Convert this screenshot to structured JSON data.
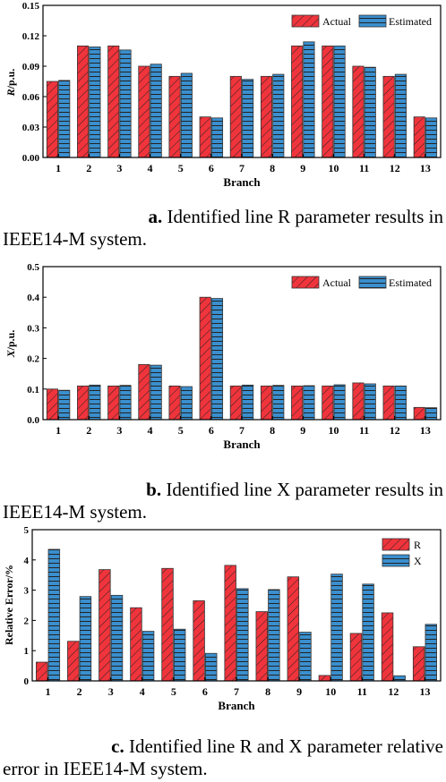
{
  "panels": [
    {
      "caption": {
        "label": "a.",
        "line1_text": " Identified line R parameter results in",
        "line2_text": "IEEE14-M system."
      },
      "chart_data": {
        "type": "bar",
        "categories": [
          "1",
          "2",
          "3",
          "4",
          "5",
          "6",
          "7",
          "8",
          "9",
          "10",
          "11",
          "12",
          "13"
        ],
        "series": [
          {
            "name": "Actual",
            "values": [
              0.075,
              0.11,
              0.11,
              0.09,
              0.08,
              0.04,
              0.08,
              0.08,
              0.11,
              0.11,
              0.09,
              0.08,
              0.04
            ]
          },
          {
            "name": "Estimated",
            "values": [
              0.076,
              0.109,
              0.106,
              0.092,
              0.083,
              0.039,
              0.077,
              0.082,
              0.114,
              0.11,
              0.089,
              0.082,
              0.039
            ]
          }
        ],
        "xlabel": "Branch",
        "ylabel": "R/p.u.",
        "ylabel_italic": "R",
        "ylabel_rest": "/p.u.",
        "ylim": [
          0,
          0.15
        ],
        "yticks": [
          "0.00",
          "0.03",
          "0.06",
          "0.09",
          "0.12",
          "0.15"
        ],
        "legend": "top-right",
        "grid": false
      }
    },
    {
      "caption": {
        "label": "b.",
        "line1_text": " Identified line X parameter results in",
        "line2_text": "IEEE14-M system."
      },
      "chart_data": {
        "type": "bar",
        "categories": [
          "1",
          "2",
          "3",
          "4",
          "5",
          "6",
          "7",
          "8",
          "9",
          "10",
          "11",
          "12",
          "13"
        ],
        "series": [
          {
            "name": "Actual",
            "values": [
              0.1,
              0.11,
              0.11,
              0.18,
              0.11,
              0.4,
              0.11,
              0.11,
              0.11,
              0.11,
              0.12,
              0.11,
              0.04
            ]
          },
          {
            "name": "Estimated",
            "values": [
              0.096,
              0.113,
              0.112,
              0.178,
              0.108,
              0.396,
              0.113,
              0.112,
              0.111,
              0.114,
              0.117,
              0.11,
              0.039
            ]
          }
        ],
        "xlabel": "Branch",
        "ylabel": "X/p.u.",
        "ylabel_italic": "X",
        "ylabel_rest": "/p.u.",
        "ylim": [
          0,
          0.5
        ],
        "yticks": [
          "0.0",
          "0.1",
          "0.2",
          "0.3",
          "0.4",
          "0.5"
        ],
        "legend": "top-right",
        "grid": false
      }
    },
    {
      "caption": {
        "label": "c.",
        "line1_text": " Identified line R and X parameter relative",
        "line2_text": "error in IEEE14-M system."
      },
      "chart_data": {
        "type": "bar",
        "categories": [
          "1",
          "2",
          "3",
          "4",
          "5",
          "6",
          "7",
          "8",
          "9",
          "10",
          "11",
          "12",
          "13"
        ],
        "series": [
          {
            "name": "R",
            "values": [
              0.62,
              1.31,
              3.68,
              2.42,
              3.72,
              2.65,
              3.82,
              2.29,
              3.44,
              0.18,
              1.57,
              2.25,
              1.13
            ]
          },
          {
            "name": "X",
            "values": [
              4.35,
              2.79,
              2.83,
              1.64,
              1.71,
              0.91,
              3.05,
              3.02,
              1.61,
              3.53,
              3.2,
              0.17,
              1.87
            ]
          }
        ],
        "xlabel": "Branch",
        "ylabel": "Relative Error/%",
        "ylabel_italic": "",
        "ylabel_rest": "Relative Error/%",
        "ylim": [
          0,
          5
        ],
        "yticks": [
          "0",
          "1",
          "2",
          "3",
          "4",
          "5"
        ],
        "legend": "top-right",
        "grid": false
      }
    }
  ],
  "colors": {
    "series_a": "#f0343c",
    "series_b": "#3a8fce",
    "hatch": "#222222",
    "axis": "#000000"
  }
}
